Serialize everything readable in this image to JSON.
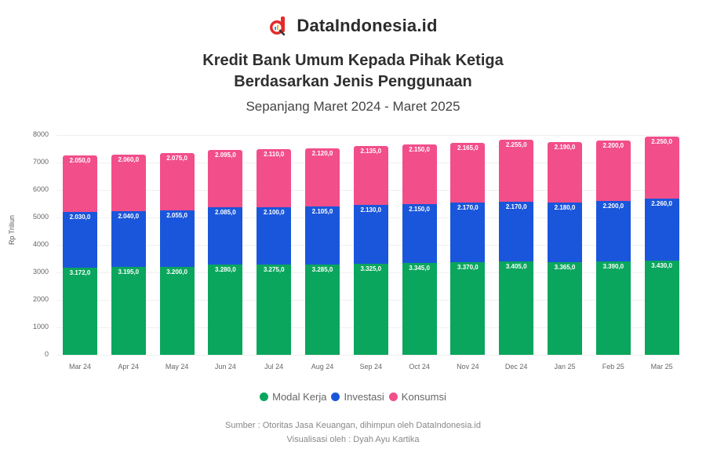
{
  "brand": {
    "name": "DataIndonesia.id",
    "logo_icon": "magnifier-d-logo",
    "logo_color": "#e32b2b"
  },
  "header": {
    "title_line1": "Kredit Bank Umum Kepada Pihak Ketiga",
    "title_line2": "Berdasarkan Jenis Penggunaan",
    "subtitle": "Sepanjang Maret 2024 - Maret 2025"
  },
  "colors": {
    "modal_kerja": "#0aa65d",
    "investasi": "#1a56db",
    "konsumsi": "#f24e8a"
  },
  "legend": [
    {
      "label": "Modal Kerja",
      "color": "#0aa65d"
    },
    {
      "label": "Investasi",
      "color": "#1a56db"
    },
    {
      "label": "Konsumsi",
      "color": "#f24e8a"
    }
  ],
  "yaxis": {
    "label": "Rp Triliun",
    "ticks": [
      "0",
      "1000",
      "2000",
      "3000",
      "4000",
      "5000",
      "6000",
      "7000",
      "8000"
    ]
  },
  "footer": {
    "source": "Sumber : Otoritas Jasa Keuangan, dihimpun oleh DataIndonesia.id",
    "visual": "Visualisasi oleh : Dyah Ayu Kartika"
  },
  "chart_data": {
    "type": "bar",
    "stacked": true,
    "title": "Kredit Bank Umum Kepada Pihak Ketiga Berdasarkan Jenis Penggunaan",
    "subtitle": "Sepanjang Maret 2024 - Maret 2025",
    "xlabel": "",
    "ylabel": "Rp Triliun",
    "ylim": [
      0,
      8000
    ],
    "grid": true,
    "legend_position": "bottom",
    "categories": [
      "Mar 24",
      "Apr 24",
      "May 24",
      "Jun 24",
      "Jul 24",
      "Aug 24",
      "Sep 24",
      "Oct 24",
      "Nov 24",
      "Dec 24",
      "Jan 25",
      "Feb 25",
      "Mar 25"
    ],
    "series": [
      {
        "name": "Modal Kerja",
        "values": [
          3172,
          3195,
          3200,
          3280,
          3275,
          3285,
          3325,
          3345,
          3370,
          3405,
          3365,
          3390,
          3430
        ]
      },
      {
        "name": "Investasi",
        "values": [
          2030,
          2040,
          2055,
          2085,
          2100,
          2105,
          2130,
          2150,
          2170,
          2170,
          2180,
          2200,
          2260
        ]
      },
      {
        "name": "Konsumsi",
        "values": [
          2050,
          2060,
          2075,
          2095,
          2110,
          2120,
          2135,
          2150,
          2165,
          2255,
          2190,
          2200,
          2250
        ]
      }
    ]
  }
}
